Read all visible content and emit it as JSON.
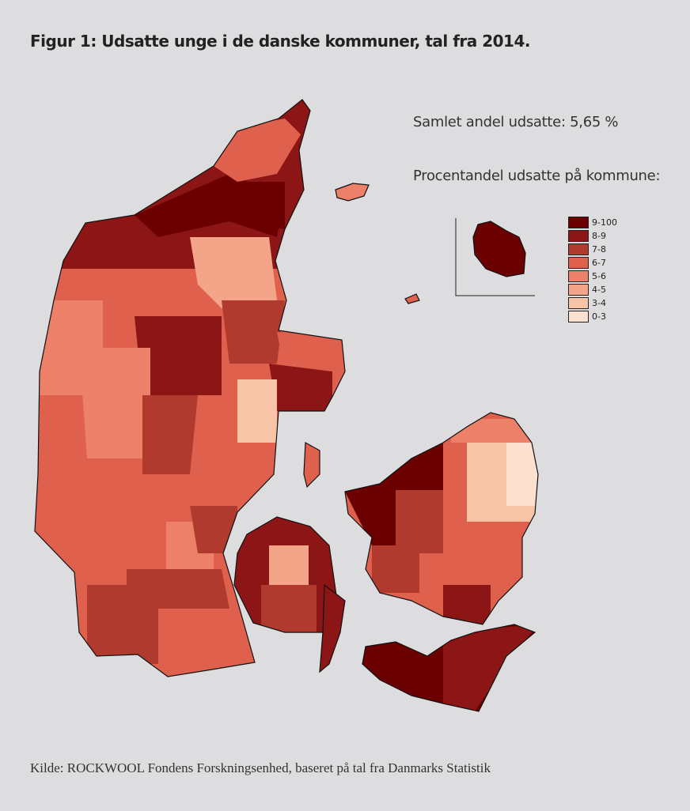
{
  "header": {
    "title": "Figur 1: Udsatte unge i de danske kommuner, tal fra 2014."
  },
  "annotations": {
    "total_share": "Samlet andel udsatte: 5,65 %",
    "legend_title": "Procentandel udsatte på kommune:"
  },
  "legend": {
    "items": [
      {
        "label": "9-100",
        "color": "#6b0000"
      },
      {
        "label": "8-9",
        "color": "#8c1515"
      },
      {
        "label": "7-8",
        "color": "#b03a2e"
      },
      {
        "label": "6-7",
        "color": "#e0604e"
      },
      {
        "label": "5-6",
        "color": "#ec8068"
      },
      {
        "label": "4-5",
        "color": "#f4a488"
      },
      {
        "label": "3-4",
        "color": "#f8c4a8"
      },
      {
        "label": "0-3",
        "color": "#fde0d0"
      }
    ]
  },
  "footer": {
    "source": "Kilde: ROCKWOOL Fondens Forskningsenhed, baseret på tal fra Danmarks Statistik"
  }
}
